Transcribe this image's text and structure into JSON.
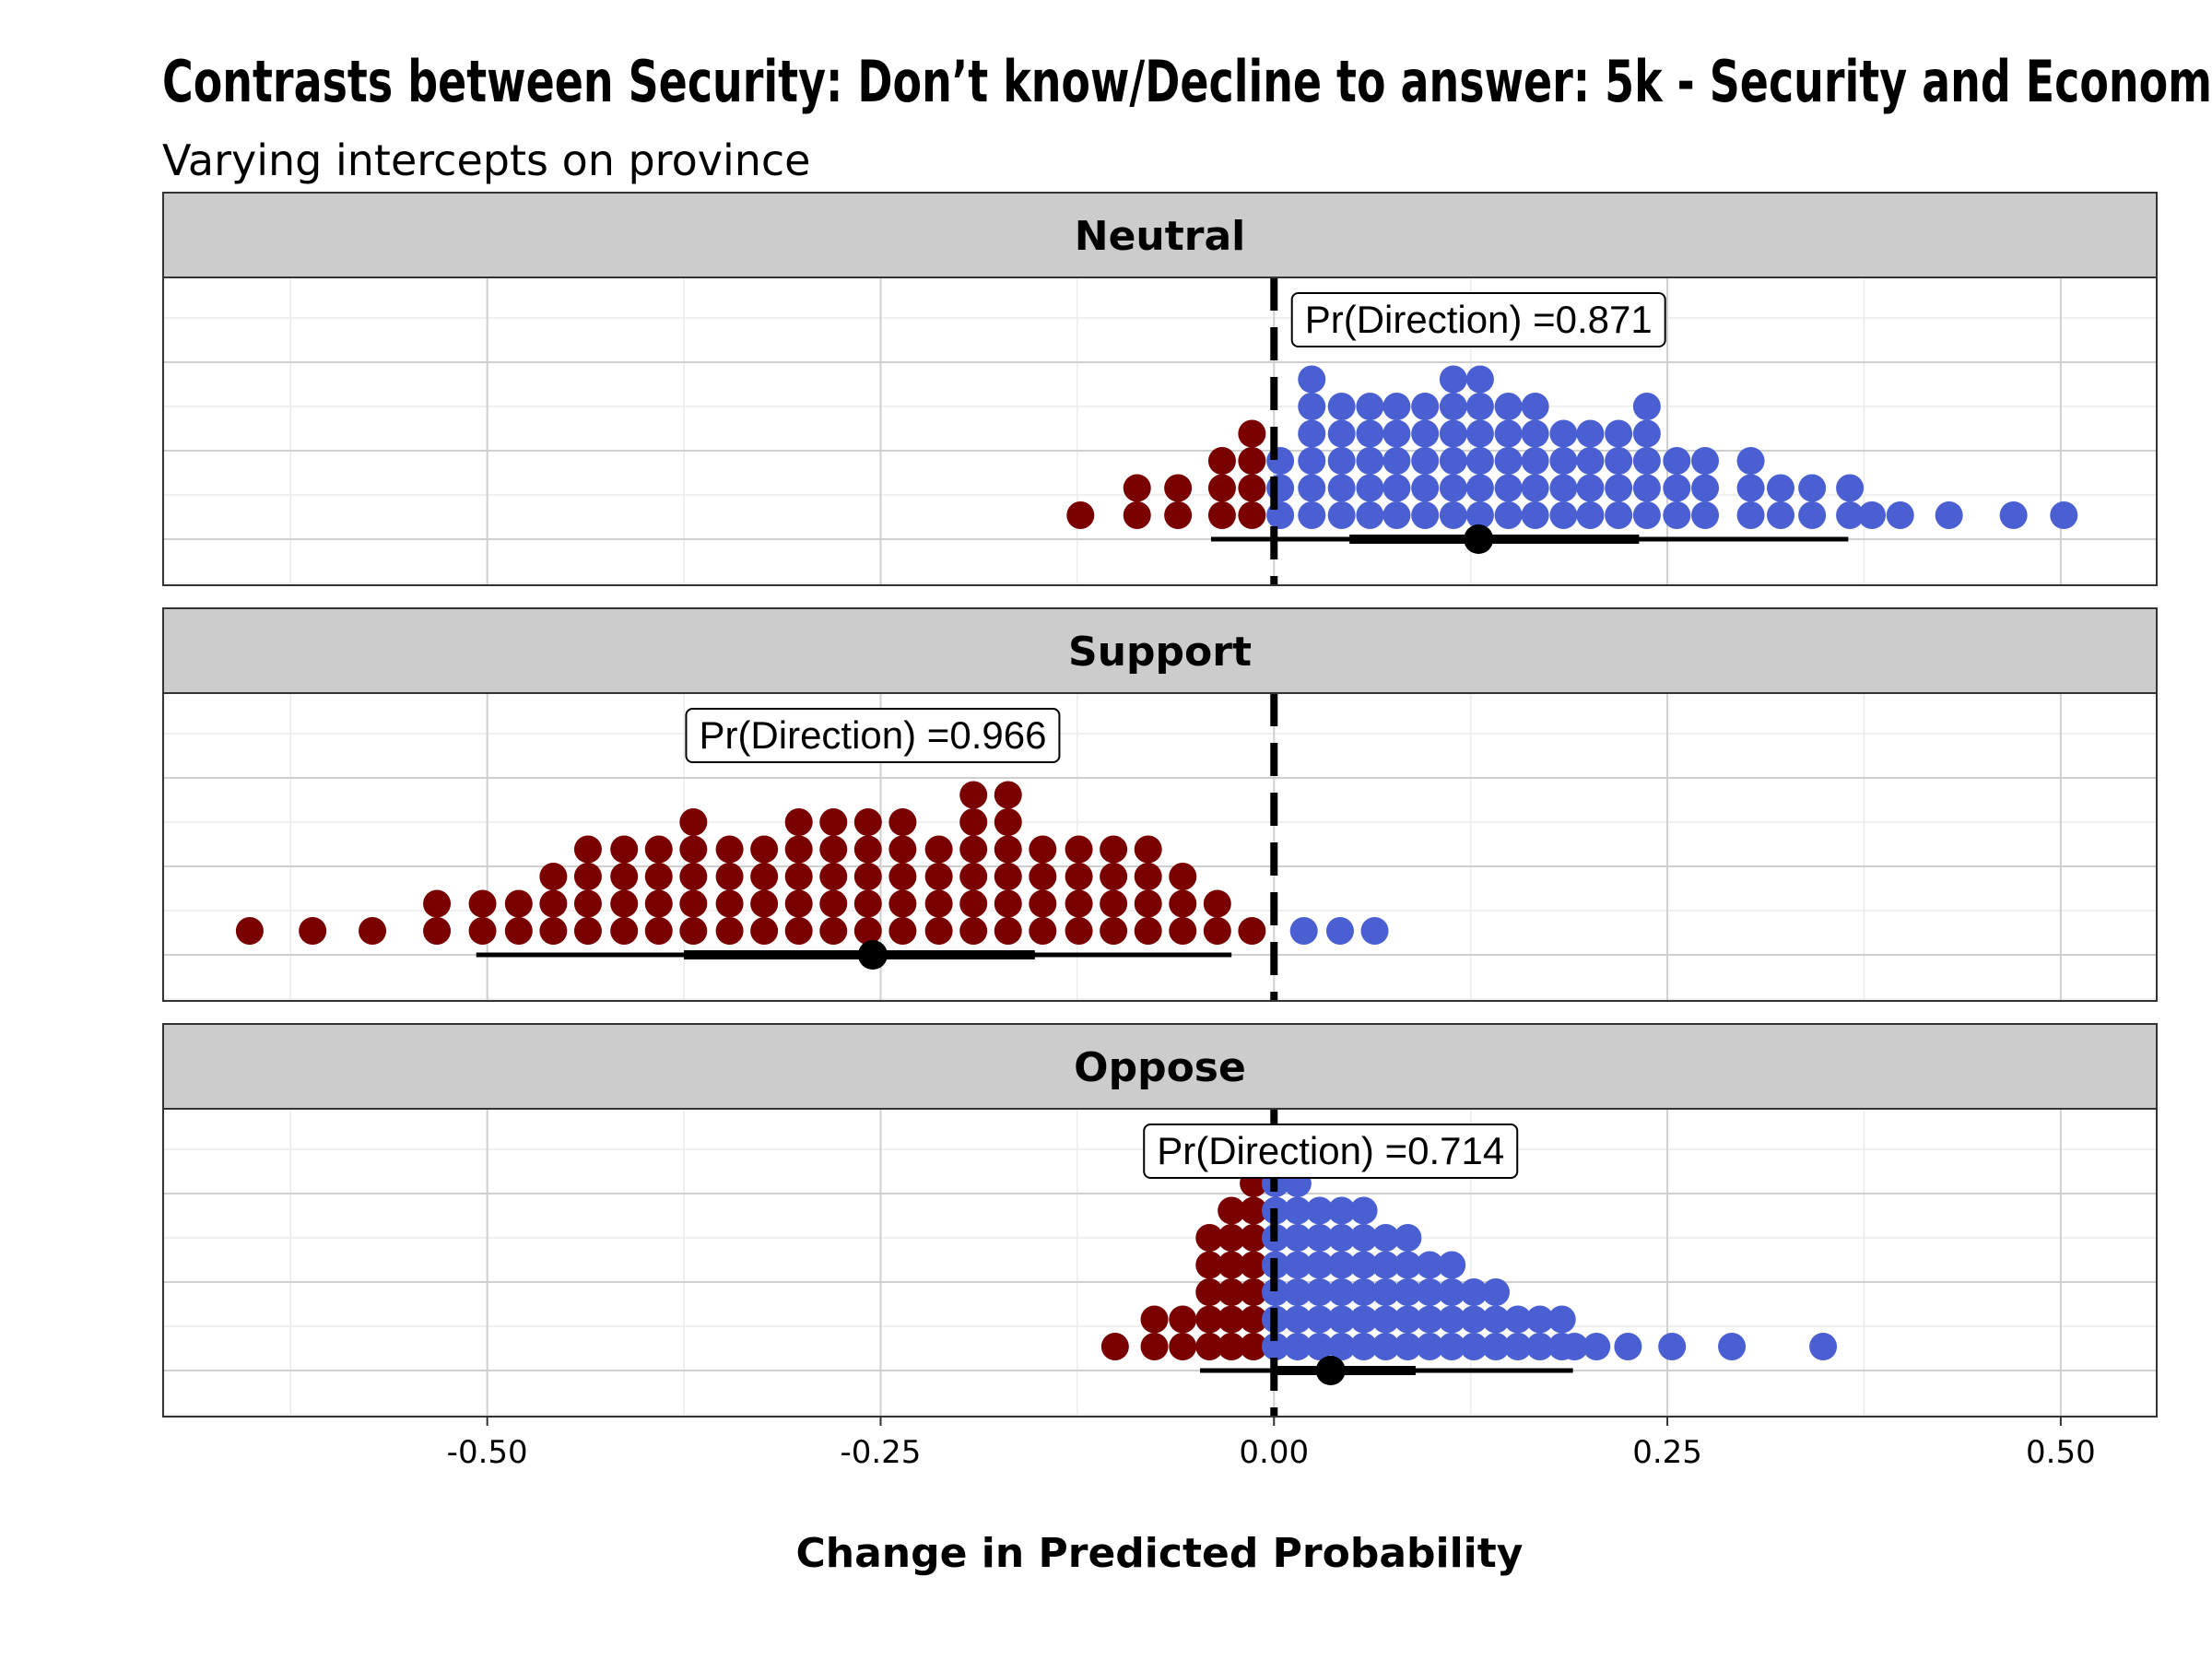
{
  "chart_data": {
    "type": "dotplot",
    "title": "Contrasts between Security: Don’t know/Decline to answer: 5k - Security and Econom",
    "subtitle": "Varying intercepts on province",
    "xlabel": "Change in Predicted Probability",
    "xlim": [
      -0.706,
      0.561
    ],
    "x_ticks": [
      -0.5,
      -0.25,
      0.0,
      0.25,
      0.5
    ],
    "x_tick_labels": [
      "-0.50",
      "-0.25",
      "0.00",
      "0.25",
      "0.50"
    ],
    "reference_line": 0.0,
    "grid": true,
    "colors": {
      "negative": "#7a0000",
      "positive": "#4a5fd1",
      "interval": "#000000",
      "strip_fill": "#cccccc"
    },
    "panels": [
      {
        "name": "Neutral",
        "label": "Pr(Direction) =0.871",
        "label_x": 0.13,
        "point_estimate": 0.13,
        "interval_inner": [
          0.048,
          0.232
        ],
        "interval_outer": [
          -0.04,
          0.365
        ],
        "stacks": [
          {
            "x": -0.123,
            "count": 1
          },
          {
            "x": -0.087,
            "count": 2
          },
          {
            "x": -0.061,
            "count": 2
          },
          {
            "x": -0.033,
            "count": 3
          },
          {
            "x": -0.014,
            "count": 4
          },
          {
            "x": 0.004,
            "count": 3
          },
          {
            "x": 0.024,
            "count": 6
          },
          {
            "x": 0.043,
            "count": 5
          },
          {
            "x": 0.061,
            "count": 5
          },
          {
            "x": 0.078,
            "count": 5
          },
          {
            "x": 0.096,
            "count": 5
          },
          {
            "x": 0.114,
            "count": 6
          },
          {
            "x": 0.131,
            "count": 6
          },
          {
            "x": 0.149,
            "count": 5
          },
          {
            "x": 0.166,
            "count": 5
          },
          {
            "x": 0.184,
            "count": 4
          },
          {
            "x": 0.201,
            "count": 4
          },
          {
            "x": 0.219,
            "count": 4
          },
          {
            "x": 0.237,
            "count": 5
          },
          {
            "x": 0.256,
            "count": 3
          },
          {
            "x": 0.274,
            "count": 3
          },
          {
            "x": 0.303,
            "count": 3
          },
          {
            "x": 0.322,
            "count": 2
          },
          {
            "x": 0.342,
            "count": 2
          },
          {
            "x": 0.366,
            "count": 2
          },
          {
            "x": 0.38,
            "count": 1
          },
          {
            "x": 0.398,
            "count": 1
          },
          {
            "x": 0.429,
            "count": 1
          },
          {
            "x": 0.47,
            "count": 1
          },
          {
            "x": 0.502,
            "count": 1
          }
        ]
      },
      {
        "name": "Support",
        "label": "Pr(Direction) =0.966",
        "label_x": -0.255,
        "point_estimate": -0.255,
        "interval_inner": [
          -0.375,
          -0.152
        ],
        "interval_outer": [
          -0.507,
          -0.027
        ],
        "stacks": [
          {
            "x": -0.651,
            "count": 1
          },
          {
            "x": -0.611,
            "count": 1
          },
          {
            "x": -0.573,
            "count": 1
          },
          {
            "x": -0.532,
            "count": 2
          },
          {
            "x": -0.503,
            "count": 2
          },
          {
            "x": -0.48,
            "count": 2
          },
          {
            "x": -0.458,
            "count": 3
          },
          {
            "x": -0.436,
            "count": 4
          },
          {
            "x": -0.413,
            "count": 4
          },
          {
            "x": -0.391,
            "count": 4
          },
          {
            "x": -0.369,
            "count": 5
          },
          {
            "x": -0.346,
            "count": 4
          },
          {
            "x": -0.324,
            "count": 4
          },
          {
            "x": -0.302,
            "count": 5
          },
          {
            "x": -0.28,
            "count": 5
          },
          {
            "x": -0.258,
            "count": 5
          },
          {
            "x": -0.236,
            "count": 5
          },
          {
            "x": -0.213,
            "count": 4
          },
          {
            "x": -0.191,
            "count": 6
          },
          {
            "x": -0.169,
            "count": 6
          },
          {
            "x": -0.147,
            "count": 4
          },
          {
            "x": -0.124,
            "count": 4
          },
          {
            "x": -0.102,
            "count": 4
          },
          {
            "x": -0.08,
            "count": 4
          },
          {
            "x": -0.058,
            "count": 3
          },
          {
            "x": -0.036,
            "count": 2
          },
          {
            "x": -0.014,
            "count": 1
          },
          {
            "x": 0.019,
            "count": 1
          },
          {
            "x": 0.042,
            "count": 1
          },
          {
            "x": 0.064,
            "count": 1
          }
        ]
      },
      {
        "name": "Oppose",
        "label": "Pr(Direction) =0.714",
        "label_x": 0.036,
        "point_estimate": 0.036,
        "interval_inner": [
          0.002,
          0.09
        ],
        "interval_outer": [
          -0.047,
          0.19
        ],
        "stacks": [
          {
            "x": -0.101,
            "count": 1
          },
          {
            "x": -0.076,
            "count": 2
          },
          {
            "x": -0.058,
            "count": 2
          },
          {
            "x": -0.041,
            "count": 5
          },
          {
            "x": -0.027,
            "count": 6
          },
          {
            "x": -0.013,
            "count": 7
          },
          {
            "x": 0.001,
            "count": 8
          },
          {
            "x": 0.015,
            "count": 8
          },
          {
            "x": 0.029,
            "count": 6
          },
          {
            "x": 0.043,
            "count": 6
          },
          {
            "x": 0.057,
            "count": 6
          },
          {
            "x": 0.071,
            "count": 5
          },
          {
            "x": 0.085,
            "count": 5
          },
          {
            "x": 0.099,
            "count": 4
          },
          {
            "x": 0.113,
            "count": 4
          },
          {
            "x": 0.127,
            "count": 3
          },
          {
            "x": 0.141,
            "count": 3
          },
          {
            "x": 0.155,
            "count": 2
          },
          {
            "x": 0.169,
            "count": 2
          },
          {
            "x": 0.183,
            "count": 2
          },
          {
            "x": 0.191,
            "count": 1
          },
          {
            "x": 0.205,
            "count": 1
          },
          {
            "x": 0.225,
            "count": 1
          },
          {
            "x": 0.253,
            "count": 1
          },
          {
            "x": 0.291,
            "count": 1
          },
          {
            "x": 0.349,
            "count": 1
          }
        ]
      }
    ]
  }
}
